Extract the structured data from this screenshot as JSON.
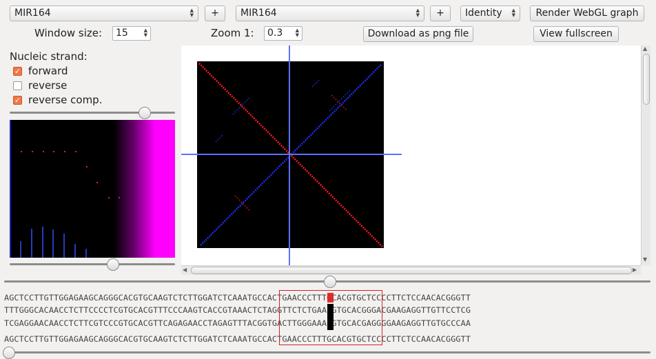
{
  "toolbar": {
    "seq1_value": "MIR164",
    "seq2_value": "MIR164",
    "add1_label": "+",
    "add2_label": "+",
    "metric_value": "Identity",
    "render_label": "Render WebGL graph",
    "window_size_label": "Window size:",
    "window_size_value": "15",
    "zoom_label": "Zoom  1:",
    "zoom_value": "0.3",
    "download_label": "Download as png file",
    "fullscreen_label": "View fullscreen"
  },
  "sidebar": {
    "strand_label": "Nucleic strand:",
    "forward_label": "forward",
    "reverse_label": "reverse",
    "revcomp_label": "reverse comp.",
    "forward_checked": true,
    "reverse_checked": false,
    "revcomp_checked": true
  },
  "sequences": {
    "line1": "AGCTCCTTGTTGGAGAAGCAGGGCACGTGCAAGTCTCTTGGATCTCAAATGCCACTGAACCCTTTGCACGTGCTCCCCTTCTCCAACACGGGTT",
    "line2": "TTTGGGCACAACCTCTTCCCCTCGTGCACGTTTCCCAAGTCACCGTAAACTCTAGGTTCTCTGAACGTGCACGGGACGAAGAGGTTGTTCCTCG",
    "line3": "TCGAGGAACAACCTCTTCGTCCCGTGCACGTTCAGAGAACCTAGAGTTTACGGTGACTTGGGAAACGTGCACGAGGGGAAGAGGTTGTGCCCAA",
    "line4": "AGCTCCTTGTTGGAGAAGCAGGGCACGTGCAAGTCTCTTGGATCTCAAATGCCACTGAACCCTTTGCACGTGCTCCCCTTCTCCAACACGGGTT"
  },
  "colors": {
    "forward": "#ff1a1a",
    "revcomp": "#2030ff",
    "crosshair": "#6070ff",
    "highlight_box": "#d42020",
    "magenta": "#ff00ff"
  }
}
